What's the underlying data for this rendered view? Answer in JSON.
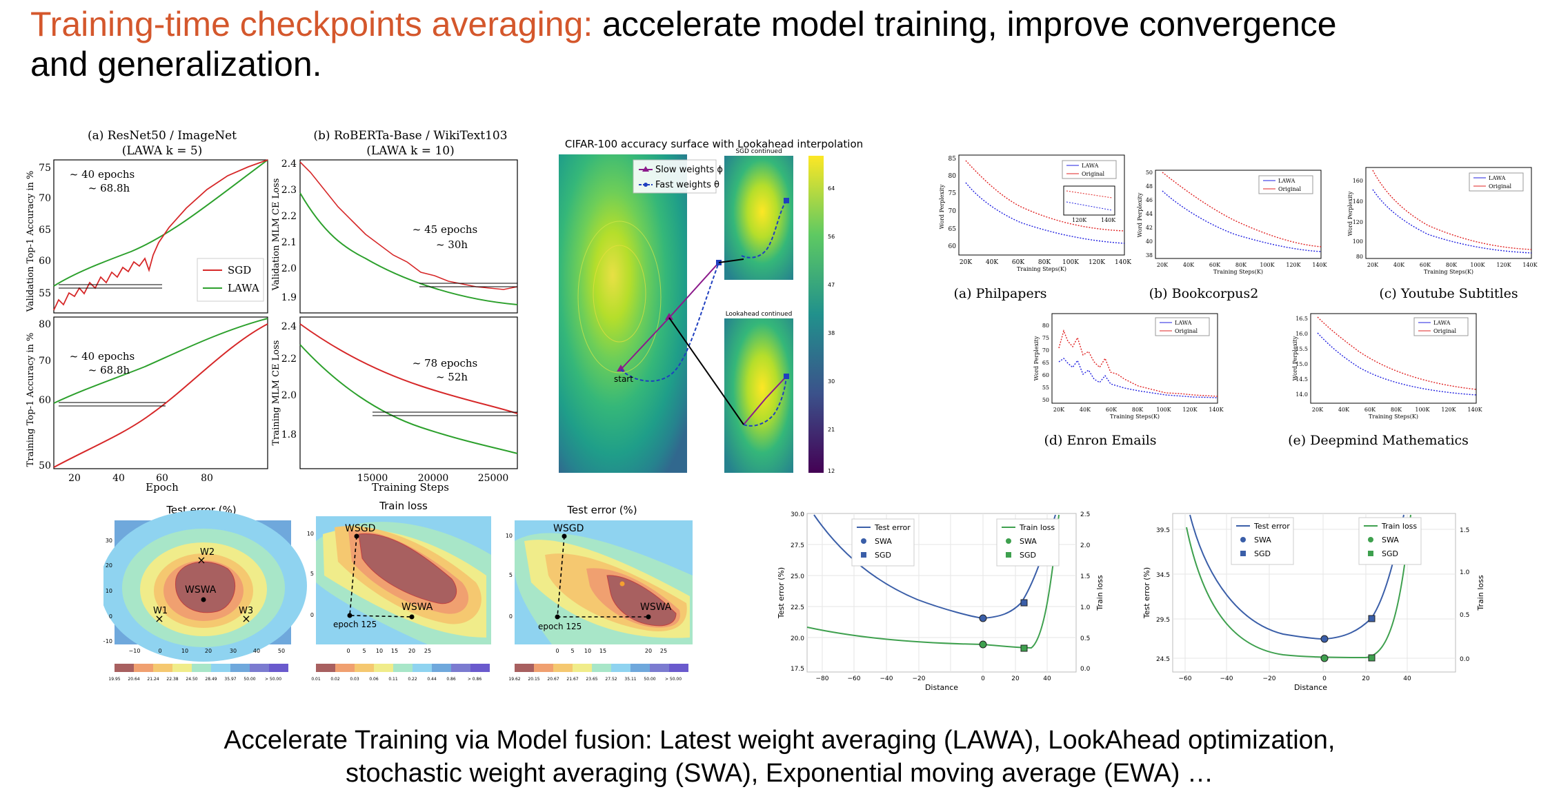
{
  "title": {
    "accent": "Training-time checkpoints averaging:",
    "rest_line1": " accelerate model training, improve convergence",
    "rest_line2": "and generalization."
  },
  "caption": {
    "line1": "Accelerate Training via Model fusion: Latest weight averaging (LAWA), LookAhead optimization,",
    "line2": "stochastic weight averaging (SWA), Exponential moving average (EWA) …"
  },
  "lawa": {
    "panel_a_title": "(a) ResNet50 / ImageNet",
    "panel_a_sub": "(LAWA k = 5)",
    "panel_b_title": "(b) RoBERTa-Base / WikiText103",
    "panel_b_sub": "(LAWA k = 10)",
    "ylabel_val_acc": "Validation Top-1 Accuracy in %",
    "ylabel_train_acc": "Training Top-1 Accuracy in %",
    "ylabel_val_loss": "Validation MLM CE Loss",
    "ylabel_train_loss": "Training MLM CE Loss",
    "xlabel_epoch": "Epoch",
    "xlabel_steps": "Training Steps",
    "ann_a1_1": "~ 40 epochs",
    "ann_a1_2": "~ 68.8h",
    "ann_a2_1": "~ 40 epochs",
    "ann_a2_2": "~ 68.8h",
    "ann_b1_1": "~ 45 epochs",
    "ann_b1_2": "~ 30h",
    "ann_b2_1": "~ 78 epochs",
    "ann_b2_2": "~ 52h",
    "legend_sgd": "SGD",
    "legend_lawa": "LAWA",
    "colors": {
      "sgd": "#d62728",
      "lawa": "#2ca02c"
    }
  },
  "lookahead": {
    "title": "CIFAR-100 accuracy surface with Lookahead interpolation",
    "legend_slow": "Slow weights ϕ",
    "legend_fast": "Fast weights θ",
    "label_start": "start",
    "inset1_title": "SGD continued",
    "inset2_title": "Lookahead continued",
    "colorbar_ticks": [
      "64",
      "56",
      "47",
      "38",
      "30",
      "21",
      "12"
    ]
  },
  "perplexity": {
    "ylabel": "Word Perplexity",
    "xlabel": "Training Steps(K)",
    "legend_lawa": "LAWA",
    "legend_original": "Original",
    "panels": [
      {
        "caption": "(a) Philpapers",
        "yticks": [
          "85",
          "80",
          "75",
          "70",
          "65",
          "60"
        ],
        "xticks": [
          "20K",
          "40K",
          "60K",
          "80K",
          "100K",
          "120K",
          "140K"
        ]
      },
      {
        "caption": "(b) Bookcorpus2",
        "yticks": [
          "50",
          "48",
          "46",
          "44",
          "42",
          "40",
          "38"
        ],
        "xticks": [
          "20K",
          "40K",
          "60K",
          "80K",
          "100K",
          "120K",
          "140K"
        ]
      },
      {
        "caption": "(c) Youtube Subtitles",
        "yticks": [
          "160",
          "140",
          "120",
          "100",
          "80"
        ],
        "xticks": [
          "20K",
          "40K",
          "60K",
          "80K",
          "100K",
          "120K",
          "140K"
        ]
      },
      {
        "caption": "(d) Enron Emails",
        "yticks": [
          "80",
          "75",
          "70",
          "65",
          "60",
          "55",
          "50"
        ],
        "xticks": [
          "20K",
          "40K",
          "60K",
          "80K",
          "100K",
          "120K",
          "140K"
        ]
      },
      {
        "caption": "(e) Deepmind Mathematics",
        "yticks": [
          "16.5",
          "16.0",
          "15.5",
          "15.0",
          "14.5",
          "14.0"
        ],
        "xticks": [
          "20K",
          "40K",
          "60K",
          "80K",
          "100K",
          "120K",
          "140K"
        ]
      }
    ],
    "inset_ticks": [
      "120K",
      "140K"
    ],
    "colors": {
      "lawa": "#1f1fe0",
      "original": "#e02020"
    }
  },
  "swa": {
    "title_test": "Test error (%)",
    "title_train": "Train loss",
    "label_w1": "W1",
    "label_w2": "W2",
    "label_w3": "W3",
    "label_wswa": "WSWA",
    "label_wsgd": "WSGD",
    "label_epoch125": "epoch 125",
    "cb1": [
      "19.95",
      "20.64",
      "21.24",
      "22.38",
      "24.50",
      "28.49",
      "35.97",
      "50.00",
      "> 50.00"
    ],
    "cb2": [
      "0.01",
      "0.02",
      "0.03",
      "0.06",
      "0.11",
      "0.22",
      "0.44",
      "0.86",
      "> 0.86"
    ],
    "cb3": [
      "19.62",
      "20.15",
      "20.67",
      "21.67",
      "23.65",
      "27.52",
      "35.11",
      "50.00",
      "> 50.00"
    ],
    "ax1_x": [
      "−10",
      "0",
      "10",
      "20",
      "30",
      "40",
      "50"
    ],
    "ax1_y": [
      "30",
      "20",
      "10",
      "0",
      "−10"
    ],
    "ax2_x": [
      "0",
      "5",
      "10",
      "15",
      "20",
      "25"
    ],
    "ax2_y": [
      "10",
      "5",
      "0"
    ],
    "ax3_x": [
      "0",
      "5",
      "10",
      "15",
      "20",
      "25"
    ],
    "ax3_y": [
      "10",
      "5",
      "0"
    ]
  },
  "dist": {
    "xlabel": "Distance",
    "ylabel_left": "Test error (%)",
    "ylabel_right": "Train loss",
    "legend_test": "Test error",
    "legend_train": "Train loss",
    "legend_swa": "SWA",
    "legend_sgd": "SGD",
    "p1_yl": [
      "30.0",
      "27.5",
      "25.0",
      "22.5",
      "20.0",
      "17.5"
    ],
    "p1_yr": [
      "2.5",
      "2.0",
      "1.5",
      "1.0",
      "0.5",
      "0.0"
    ],
    "p1_x": [
      "−80",
      "−60",
      "−40",
      "−20",
      "0",
      "20",
      "40"
    ],
    "p2_yl": [
      "39.5",
      "34.5",
      "29.5",
      "24.5"
    ],
    "p2_yr": [
      "1.5",
      "1.0",
      "0.5",
      "0.0"
    ],
    "p2_x": [
      "−60",
      "−40",
      "−20",
      "0",
      "20",
      "40"
    ],
    "colors": {
      "test": "#3a5ea8",
      "train": "#3ea04e"
    }
  }
}
